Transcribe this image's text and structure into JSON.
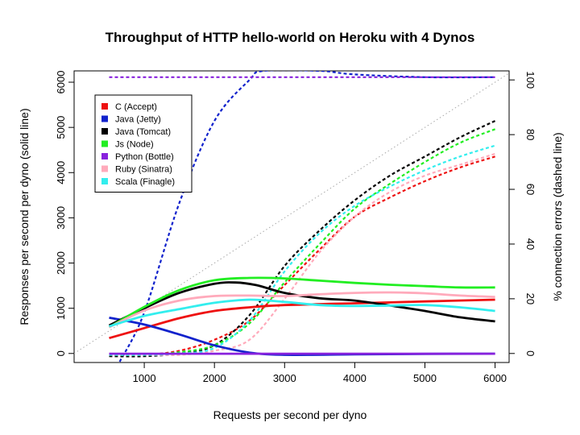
{
  "chart_data": {
    "type": "line",
    "title": "Throughput of HTTP hello-world on Heroku with 4 Dynos",
    "xlabel": "Requests per second per dyno",
    "ylabel": "Responses per second per dyno (solid line)",
    "y2label": "% connection errors (dashed line)",
    "xlim": [
      0,
      6200
    ],
    "ylim": [
      -200,
      6250
    ],
    "y2lim": [
      -3.3,
      103.3
    ],
    "x_ticks": [
      1000,
      2000,
      3000,
      4000,
      5000,
      6000
    ],
    "y_ticks": [
      0,
      1000,
      2000,
      3000,
      4000,
      5000,
      6000
    ],
    "y2_ticks": [
      0,
      20,
      40,
      60,
      80,
      100
    ],
    "grid": false,
    "legend_position": "top-left",
    "reference_line": {
      "style": "dotted",
      "color": "#aaaaaa",
      "from": [
        0,
        0
      ],
      "to": [
        6200,
        6200
      ]
    },
    "series": [
      {
        "name": "C (Accept)",
        "color": "#ee1111",
        "responses": [
          [
            500,
            340
          ],
          [
            1000,
            560
          ],
          [
            1500,
            780
          ],
          [
            2000,
            940
          ],
          [
            2500,
            1020
          ],
          [
            3000,
            1070
          ],
          [
            4000,
            1110
          ],
          [
            5000,
            1150
          ],
          [
            6000,
            1190
          ]
        ],
        "errors": [
          [
            500,
            -0.5
          ],
          [
            1000,
            -0.5
          ],
          [
            1500,
            1
          ],
          [
            2000,
            5
          ],
          [
            2500,
            12
          ],
          [
            3000,
            25
          ],
          [
            3500,
            38
          ],
          [
            4000,
            50
          ],
          [
            4500,
            57
          ],
          [
            5000,
            63
          ],
          [
            5500,
            68
          ],
          [
            6000,
            72
          ]
        ]
      },
      {
        "name": "Java (Jetty)",
        "color": "#1122cc",
        "responses": [
          [
            500,
            790
          ],
          [
            1000,
            640
          ],
          [
            1500,
            420
          ],
          [
            2000,
            180
          ],
          [
            2500,
            20
          ],
          [
            3000,
            -30
          ],
          [
            4000,
            -20
          ],
          [
            5000,
            -10
          ],
          [
            6000,
            -5
          ]
        ],
        "errors": [
          [
            650,
            -3
          ],
          [
            1000,
            15
          ],
          [
            1500,
            55
          ],
          [
            2000,
            85
          ],
          [
            2500,
            100
          ],
          [
            2700,
            103.3
          ],
          [
            3500,
            103.3
          ],
          [
            4000,
            102
          ],
          [
            5000,
            101
          ],
          [
            6000,
            101
          ]
        ]
      },
      {
        "name": "Java (Tomcat)",
        "color": "#000000",
        "responses": [
          [
            500,
            620
          ],
          [
            1000,
            1000
          ],
          [
            1500,
            1340
          ],
          [
            2000,
            1540
          ],
          [
            2300,
            1570
          ],
          [
            2600,
            1510
          ],
          [
            3000,
            1340
          ],
          [
            3500,
            1220
          ],
          [
            4000,
            1170
          ],
          [
            4500,
            1060
          ],
          [
            5000,
            940
          ],
          [
            5500,
            800
          ],
          [
            6000,
            710
          ]
        ],
        "errors": [
          [
            500,
            -1
          ],
          [
            1000,
            -1
          ],
          [
            1500,
            0
          ],
          [
            2000,
            3
          ],
          [
            2500,
            14
          ],
          [
            3000,
            32
          ],
          [
            3500,
            45
          ],
          [
            4000,
            56
          ],
          [
            4500,
            65
          ],
          [
            5000,
            72
          ],
          [
            5500,
            79
          ],
          [
            6000,
            85
          ]
        ]
      },
      {
        "name": "Js (Node)",
        "color": "#22ee22",
        "responses": [
          [
            500,
            580
          ],
          [
            1000,
            1030
          ],
          [
            1500,
            1400
          ],
          [
            2000,
            1620
          ],
          [
            2500,
            1670
          ],
          [
            3000,
            1660
          ],
          [
            3500,
            1610
          ],
          [
            4000,
            1560
          ],
          [
            4500,
            1520
          ],
          [
            5000,
            1490
          ],
          [
            5500,
            1460
          ],
          [
            6000,
            1460
          ]
        ],
        "errors": [
          [
            500,
            -0.5
          ],
          [
            1000,
            -0.5
          ],
          [
            1500,
            0.5
          ],
          [
            2000,
            3
          ],
          [
            2500,
            11
          ],
          [
            3000,
            26
          ],
          [
            3500,
            40
          ],
          [
            4000,
            53
          ],
          [
            4500,
            62
          ],
          [
            5000,
            70
          ],
          [
            5500,
            77
          ],
          [
            6000,
            82
          ]
        ]
      },
      {
        "name": "Python (Bottle)",
        "color": "#8822dd",
        "responses": [
          [
            500,
            -5
          ],
          [
            1000,
            -5
          ],
          [
            2000,
            -5
          ],
          [
            3000,
            -5
          ],
          [
            4000,
            -5
          ],
          [
            5000,
            -5
          ],
          [
            6000,
            -5
          ]
        ],
        "errors": [
          [
            500,
            101
          ],
          [
            1000,
            101
          ],
          [
            2000,
            101
          ],
          [
            3000,
            101
          ],
          [
            4000,
            101
          ],
          [
            5000,
            101
          ],
          [
            6000,
            101
          ]
        ]
      },
      {
        "name": "Ruby (Sinatra)",
        "color": "#ffaabb",
        "responses": [
          [
            500,
            580
          ],
          [
            1000,
            950
          ],
          [
            1500,
            1170
          ],
          [
            2000,
            1270
          ],
          [
            2500,
            1280
          ],
          [
            3000,
            1270
          ],
          [
            3500,
            1310
          ],
          [
            4000,
            1340
          ],
          [
            4500,
            1350
          ],
          [
            5000,
            1330
          ],
          [
            5500,
            1280
          ],
          [
            6000,
            1250
          ]
        ],
        "errors": [
          [
            500,
            -0.5
          ],
          [
            1000,
            -0.5
          ],
          [
            1500,
            -0.5
          ],
          [
            2000,
            1
          ],
          [
            2500,
            5
          ],
          [
            3000,
            20
          ],
          [
            3500,
            37
          ],
          [
            4000,
            50
          ],
          [
            4500,
            59
          ],
          [
            5000,
            65
          ],
          [
            5500,
            69
          ],
          [
            6000,
            73
          ]
        ]
      },
      {
        "name": "Scala (Finagle)",
        "color": "#33eeee",
        "responses": [
          [
            500,
            600
          ],
          [
            1000,
            830
          ],
          [
            1500,
            980
          ],
          [
            2000,
            1120
          ],
          [
            2500,
            1190
          ],
          [
            3000,
            1140
          ],
          [
            3500,
            1070
          ],
          [
            4000,
            1050
          ],
          [
            4500,
            1060
          ],
          [
            5000,
            1070
          ],
          [
            5500,
            1020
          ],
          [
            6000,
            940
          ]
        ],
        "errors": [
          [
            500,
            -0.5
          ],
          [
            1000,
            -0.5
          ],
          [
            1500,
            0
          ],
          [
            2000,
            2
          ],
          [
            2500,
            12
          ],
          [
            3000,
            30
          ],
          [
            3500,
            44
          ],
          [
            4000,
            54
          ],
          [
            4500,
            61
          ],
          [
            5000,
            67
          ],
          [
            5500,
            72
          ],
          [
            6000,
            76
          ]
        ]
      }
    ]
  }
}
